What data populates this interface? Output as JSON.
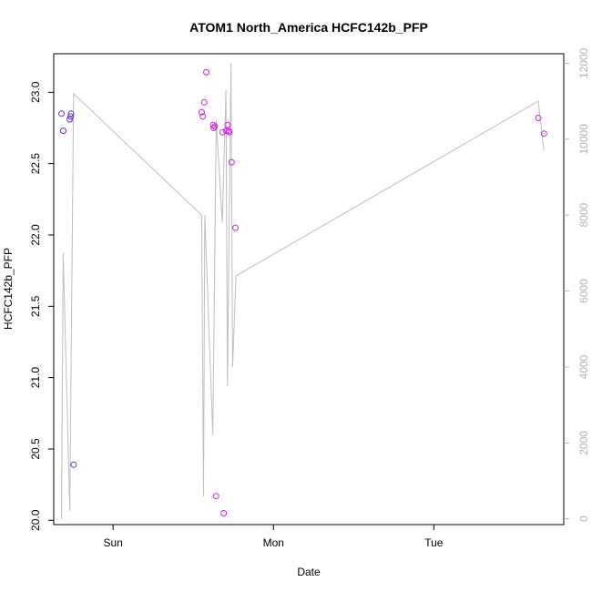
{
  "chart_data": {
    "type": "scatter",
    "title": "ATOM1 North_America HCFC142b_PFP",
    "xlabel": "Date",
    "ylabel": "HCFC142b_PFP",
    "x_ticks": [
      {
        "label": "Sun",
        "value": 0
      },
      {
        "label": "Mon",
        "value": 1
      },
      {
        "label": "Tue",
        "value": 2
      }
    ],
    "xlim": [
      -0.37,
      2.81
    ],
    "ylim": [
      19.97,
      23.27
    ],
    "y_ticks": [
      20.0,
      20.5,
      21.0,
      21.5,
      22.0,
      22.5,
      23.0
    ],
    "y2lim": [
      -150,
      12250
    ],
    "y2_ticks": [
      0,
      2000,
      4000,
      6000,
      8000,
      10000,
      12000
    ],
    "points": [
      {
        "x": -0.322,
        "y": 22.85,
        "color": "#6a2bd9"
      },
      {
        "x": -0.311,
        "y": 22.73,
        "color": "#6a2bd9"
      },
      {
        "x": -0.27,
        "y": 22.81,
        "color": "#6a2bd9"
      },
      {
        "x": -0.265,
        "y": 22.83,
        "color": "#6a2bd9"
      },
      {
        "x": -0.262,
        "y": 22.85,
        "color": "#6a2bd9"
      },
      {
        "x": -0.246,
        "y": 20.39,
        "color": "#7a28d6"
      },
      {
        "x": 0.552,
        "y": 22.86,
        "color": "#cc22e0"
      },
      {
        "x": 0.559,
        "y": 22.83,
        "color": "#cc22e0"
      },
      {
        "x": 0.568,
        "y": 22.93,
        "color": "#cc22e0"
      },
      {
        "x": 0.581,
        "y": 23.14,
        "color": "#cc22e0"
      },
      {
        "x": 0.623,
        "y": 22.77,
        "color": "#cc22e0"
      },
      {
        "x": 0.627,
        "y": 22.75,
        "color": "#cc22e0"
      },
      {
        "x": 0.634,
        "y": 22.76,
        "color": "#cc22e0"
      },
      {
        "x": 0.642,
        "y": 20.17,
        "color": "#cc22e0"
      },
      {
        "x": 0.682,
        "y": 22.72,
        "color": "#cc22e0"
      },
      {
        "x": 0.69,
        "y": 20.05,
        "color": "#cc22e0"
      },
      {
        "x": 0.705,
        "y": 22.73,
        "color": "#cc22e0"
      },
      {
        "x": 0.714,
        "y": 22.77,
        "color": "#cc22e0"
      },
      {
        "x": 0.721,
        "y": 22.73,
        "color": "#cc22e0"
      },
      {
        "x": 0.724,
        "y": 22.72,
        "color": "#cc22e0"
      },
      {
        "x": 0.739,
        "y": 22.51,
        "color": "#cc22e0"
      },
      {
        "x": 0.763,
        "y": 22.05,
        "color": "#cc22e0"
      },
      {
        "x": 2.651,
        "y": 22.82,
        "color": "#cc22e0"
      },
      {
        "x": 2.686,
        "y": 22.71,
        "color": "#cc22e0"
      }
    ],
    "line_series": {
      "axis": "right",
      "color": "#bebebe",
      "x": [
        -0.322,
        -0.311,
        -0.27,
        -0.246,
        0.552,
        0.564,
        0.572,
        0.622,
        0.643,
        0.681,
        0.704,
        0.713,
        0.735,
        0.745,
        0.766,
        2.651,
        2.686
      ],
      "y": [
        0,
        7000,
        200,
        11200,
        8000,
        600,
        8000,
        2200,
        10500,
        7800,
        11300,
        3500,
        12000,
        4000,
        6400,
        11000,
        9700
      ]
    }
  }
}
